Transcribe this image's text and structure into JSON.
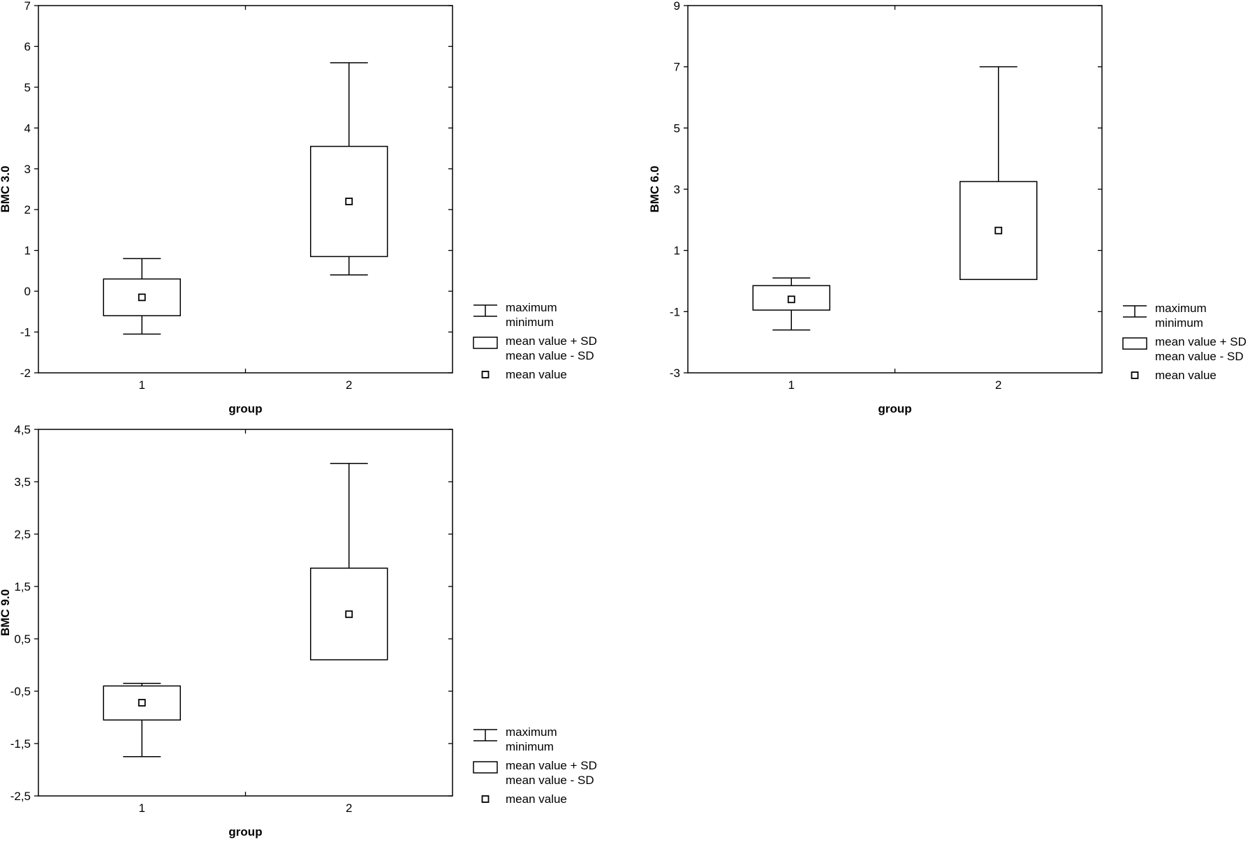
{
  "chart_data": [
    {
      "type": "box",
      "ylabel": "BMC 3.0",
      "xlabel": "group",
      "ylim": [
        -2,
        7
      ],
      "yticks": [
        "-2",
        "-1",
        "0",
        "1",
        "2",
        "3",
        "4",
        "5",
        "6",
        "7"
      ],
      "categories": [
        "1",
        "2"
      ],
      "groups": [
        {
          "category": "1",
          "max": 0.8,
          "mean_plus_sd": 0.3,
          "mean": -0.15,
          "mean_minus_sd": -0.6,
          "min": -1.05
        },
        {
          "category": "2",
          "max": 5.6,
          "mean_plus_sd": 3.55,
          "mean": 2.2,
          "mean_minus_sd": 0.85,
          "min": 0.4
        }
      ],
      "legend": [
        "maximum",
        "minimum",
        "mean value + SD",
        "mean value - SD",
        "mean value"
      ]
    },
    {
      "type": "box",
      "ylabel": "BMC 6.0",
      "xlabel": "group",
      "ylim": [
        -3,
        9
      ],
      "yticks": [
        "-3",
        "-1",
        "1",
        "3",
        "5",
        "7",
        "9"
      ],
      "categories": [
        "1",
        "2"
      ],
      "groups": [
        {
          "category": "1",
          "max": 0.1,
          "mean_plus_sd": -0.15,
          "mean": -0.6,
          "mean_minus_sd": -0.95,
          "min": -1.6
        },
        {
          "category": "2",
          "max": 7.0,
          "mean_plus_sd": 3.25,
          "mean": 1.65,
          "mean_minus_sd": 0.05,
          "min": 0.05
        }
      ],
      "legend": [
        "maximum",
        "minimum",
        "mean value + SD",
        "mean value - SD",
        "mean value"
      ]
    },
    {
      "type": "box",
      "ylabel": "BMC 9.0",
      "xlabel": "group",
      "ylim": [
        -2.5,
        4.5
      ],
      "yticks": [
        "-2,5",
        "-1,5",
        "-0,5",
        "0,5",
        "1,5",
        "2,5",
        "3,5",
        "4,5"
      ],
      "categories": [
        "1",
        "2"
      ],
      "groups": [
        {
          "category": "1",
          "max": -0.35,
          "mean_plus_sd": -0.4,
          "mean": -0.72,
          "mean_minus_sd": -1.05,
          "min": -1.75
        },
        {
          "category": "2",
          "max": 3.85,
          "mean_plus_sd": 1.85,
          "mean": 0.97,
          "mean_minus_sd": 0.1,
          "min": 0.1
        }
      ],
      "legend": [
        "maximum",
        "minimum",
        "mean value + SD",
        "mean value - SD",
        "mean value"
      ]
    }
  ]
}
